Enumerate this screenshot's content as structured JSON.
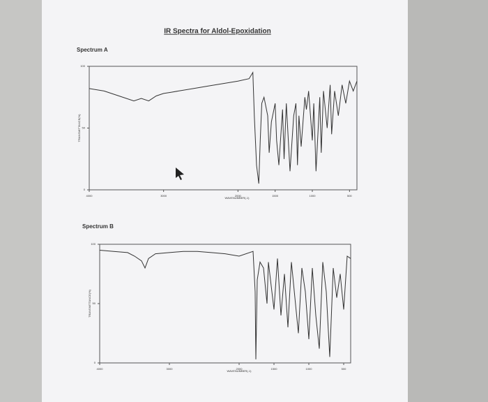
{
  "header": {
    "title": "IR Spectra for Aldol-Epoxidation"
  },
  "chart_data": [
    {
      "type": "line",
      "title": "Spectrum A",
      "x_label": "WAVENUMBER(-1)",
      "y_label": "TRANSMITTANCE(%)",
      "color": "#333333",
      "x": [
        4000,
        3800,
        3600,
        3400,
        3300,
        3200,
        3100,
        3000,
        2900,
        2800,
        2600,
        2400,
        2200,
        2000,
        1850,
        1800,
        1780,
        1750,
        1720,
        1700,
        1680,
        1650,
        1600,
        1580,
        1550,
        1500,
        1480,
        1450,
        1400,
        1380,
        1350,
        1300,
        1250,
        1220,
        1200,
        1180,
        1150,
        1100,
        1080,
        1050,
        1000,
        980,
        950,
        900,
        880,
        850,
        800,
        760,
        740,
        700,
        650,
        600,
        550,
        500,
        450,
        400
      ],
      "values": [
        82,
        80,
        76,
        72,
        74,
        72,
        76,
        78,
        79,
        80,
        82,
        84,
        86,
        88,
        90,
        95,
        60,
        20,
        5,
        40,
        70,
        75,
        60,
        30,
        55,
        70,
        40,
        20,
        65,
        25,
        70,
        15,
        60,
        70,
        20,
        60,
        35,
        75,
        65,
        80,
        40,
        70,
        15,
        75,
        30,
        80,
        50,
        85,
        45,
        80,
        60,
        85,
        70,
        88,
        80,
        88
      ],
      "xlim": [
        4000,
        400
      ],
      "xticks": [
        4000,
        3000,
        2000,
        1500,
        1000,
        500
      ],
      "ylim": [
        0,
        100
      ],
      "yticks": [
        0,
        50,
        100
      ]
    },
    {
      "type": "line",
      "title": "Spectrum B",
      "x_label": "WAVENUMBER(-1)",
      "y_label": "TRANSMITTANCE(%)",
      "color": "#333333",
      "x": [
        4000,
        3800,
        3600,
        3500,
        3400,
        3350,
        3300,
        3200,
        3000,
        2800,
        2600,
        2400,
        2200,
        2000,
        1800,
        1770,
        1760,
        1740,
        1700,
        1650,
        1600,
        1580,
        1500,
        1450,
        1400,
        1350,
        1300,
        1250,
        1200,
        1150,
        1100,
        1050,
        1000,
        950,
        900,
        850,
        800,
        750,
        700,
        650,
        600,
        550,
        500,
        450,
        400
      ],
      "values": [
        95,
        94,
        93,
        90,
        86,
        80,
        88,
        92,
        93,
        94,
        94,
        93,
        92,
        90,
        94,
        60,
        3,
        70,
        85,
        80,
        50,
        85,
        45,
        88,
        40,
        75,
        30,
        85,
        55,
        25,
        80,
        60,
        20,
        80,
        40,
        12,
        85,
        60,
        5,
        80,
        55,
        75,
        45,
        90,
        88
      ],
      "xlim": [
        4000,
        400
      ],
      "xticks": [
        4000,
        3000,
        2000,
        1500,
        1000,
        500
      ],
      "ylim": [
        0,
        100
      ],
      "yticks": [
        0,
        50,
        100
      ]
    }
  ]
}
